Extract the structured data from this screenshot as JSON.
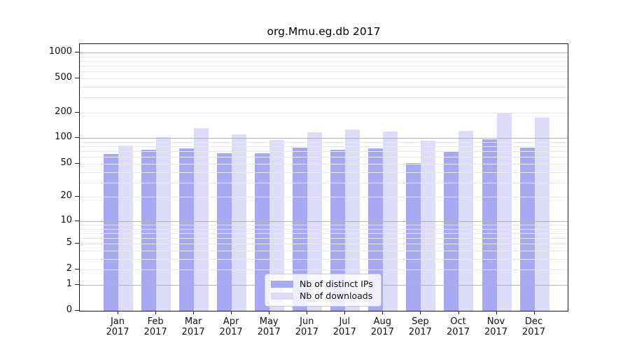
{
  "title": "org.Mmu.eg.db 2017",
  "chart_data": {
    "type": "bar",
    "title": "org.Mmu.eg.db 2017",
    "categories": [
      "Jan",
      "Feb",
      "Mar",
      "Apr",
      "May",
      "Jun",
      "Jul",
      "Aug",
      "Sep",
      "Oct",
      "Nov",
      "Dec"
    ],
    "category_year": "2017",
    "series": [
      {
        "name": "Nb of distinct IPs",
        "color": "#a8a8f2",
        "values": [
          65,
          73,
          76,
          66,
          67,
          78,
          73,
          76,
          51,
          69,
          98,
          77
        ]
      },
      {
        "name": "Nb of downloads",
        "color": "#dcdcf8",
        "values": [
          82,
          102,
          131,
          110,
          96,
          118,
          126,
          120,
          93,
          123,
          199,
          175
        ]
      }
    ],
    "yscale": "log1p",
    "yticks": [
      0,
      1,
      2,
      5,
      10,
      20,
      50,
      100,
      200,
      500,
      1000
    ],
    "ylim": [
      0,
      1250
    ],
    "xlabel": "",
    "ylabel": "",
    "grid": "on",
    "legend_position": "lower center"
  },
  "legend": {
    "items": [
      {
        "label": "Nb of distinct IPs",
        "color": "#a8a8f2"
      },
      {
        "label": "Nb of downloads",
        "color": "#dcdcf8"
      }
    ]
  },
  "colors": {
    "bar_ips": "#a8a8f2",
    "bar_downloads": "#dcdcf8",
    "grid_major": "#b4b4b4",
    "grid_minor": "#e7e7e7",
    "axis": "#1a1a1a",
    "background": "#ffffff"
  }
}
